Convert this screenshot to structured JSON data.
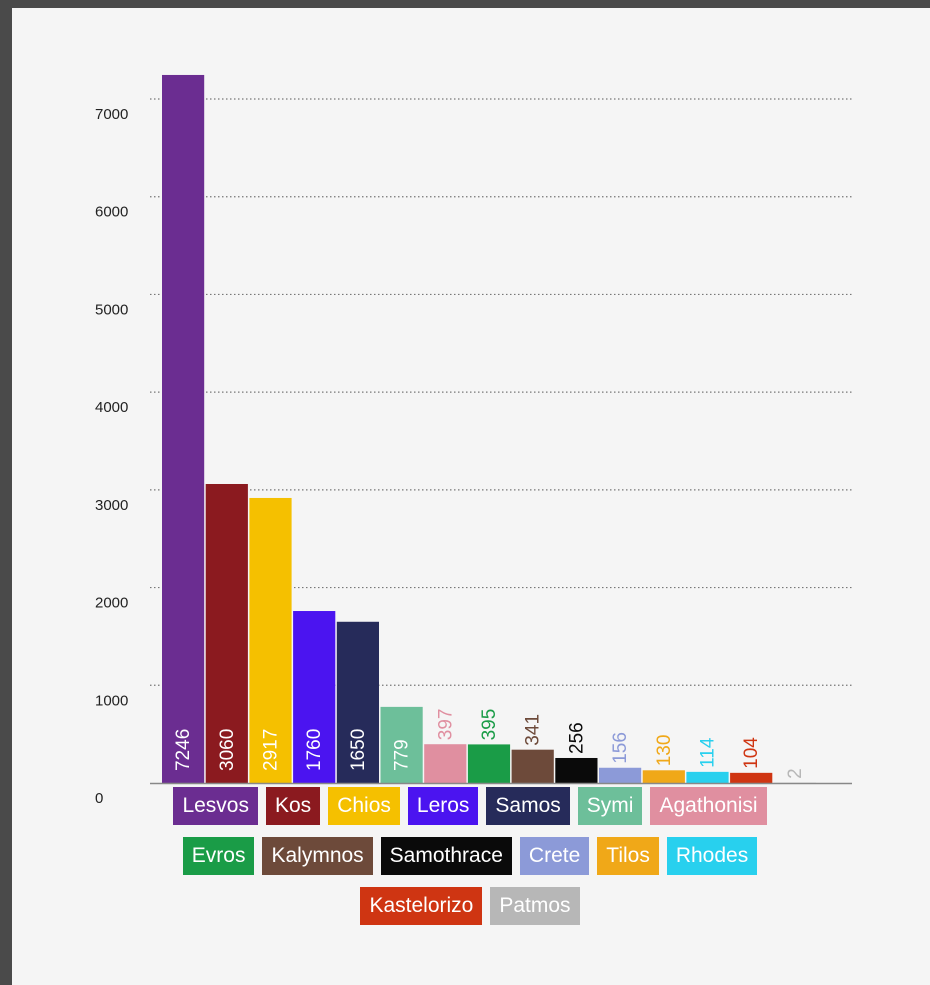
{
  "chart_data": {
    "type": "bar",
    "title": "",
    "xlabel": "",
    "ylabel": "",
    "ylim": [
      0,
      7500
    ],
    "yticks": [
      0,
      1000,
      2000,
      3000,
      4000,
      5000,
      6000,
      7000
    ],
    "ytick_labels": [
      "0",
      "1000",
      "2000",
      "3000",
      "4000",
      "5000",
      "6000",
      "7000"
    ],
    "grid": "horizontal-dotted",
    "categories": [
      "Lesvos",
      "Kos",
      "Chios",
      "Leros",
      "Samos",
      "Symi",
      "Agathonisi",
      "Evros",
      "Kalymnos",
      "Samothrace",
      "Crete",
      "Tilos",
      "Rhodes",
      "Kastelorizo",
      "Patmos"
    ],
    "values": [
      7246,
      3060,
      2917,
      1760,
      1650,
      779,
      397,
      395,
      341,
      256,
      156,
      130,
      114,
      104,
      2
    ],
    "value_labels": [
      "7246",
      "3060",
      "2917",
      "1760",
      "1650",
      "779",
      "397",
      "395",
      "341",
      "256",
      "156",
      "130",
      "114",
      "104",
      "2"
    ],
    "colors": [
      "#6b2d91",
      "#8b1a1f",
      "#f5c000",
      "#4b14f0",
      "#262b5a",
      "#6dbf9a",
      "#e08fa0",
      "#1a9c47",
      "#6d4a3a",
      "#0a0a0a",
      "#8c9ad8",
      "#f0a818",
      "#28d0ee",
      "#cf3512",
      "#b7b7b7"
    ],
    "label_inside": [
      true,
      true,
      true,
      true,
      true,
      true,
      false,
      false,
      false,
      false,
      false,
      false,
      false,
      false,
      false
    ],
    "legend_placement": "bottom"
  }
}
